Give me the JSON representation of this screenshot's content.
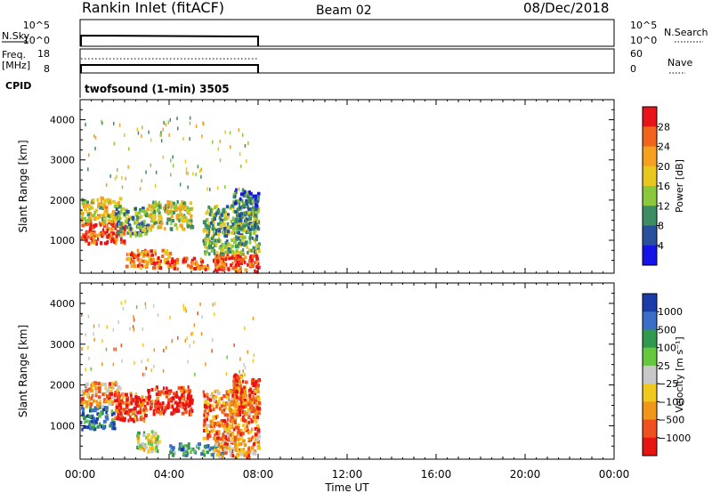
{
  "header": {
    "title": "Rankin Inlet (fitACF)",
    "beam": "Beam 02",
    "date": "08/Dec/2018"
  },
  "nsky_panel": {
    "label": "N.Sky",
    "right_label": "N.Search",
    "ticks_left": [
      "10^5",
      "10^0"
    ],
    "ticks_right": [
      "10^5",
      "10^0"
    ]
  },
  "freq_panel": {
    "label_line1": "Freq.",
    "label_line2": "[MHz]",
    "ticks_left": [
      "18",
      "8"
    ],
    "ticks_right": [
      "60",
      "0"
    ],
    "right_label": "Nave"
  },
  "cpid_panel": {
    "label": "CPID",
    "value": "twofsound (1-min) 3505"
  },
  "chart_data": [
    {
      "type": "heatmap",
      "title": "",
      "xlabel": "Time UT",
      "ylabel": "Slant Range [km]",
      "x_ticks": [
        "00:00",
        "04:00",
        "08:00",
        "12:00",
        "16:00",
        "20:00",
        "00:00"
      ],
      "xlim": [
        0,
        24
      ],
      "ylim": [
        180,
        4500
      ],
      "y_ticks": [
        1000,
        2000,
        3000,
        4000
      ],
      "colorbar": {
        "label": "Power [dB]",
        "ticks": [
          "28",
          "24",
          "20",
          "16",
          "12",
          "8",
          "4"
        ],
        "colors": [
          "#e8141a",
          "#f0641e",
          "#f5a01e",
          "#e8c81e",
          "#8cc83c",
          "#3c8c64",
          "#28509b",
          "#1414e6"
        ]
      },
      "data_coverage_hours": [
        0,
        8
      ],
      "clusters": [
        {
          "t0": 0.0,
          "t1": 2.0,
          "r0": 950,
          "r1": 1500,
          "level": 0.85
        },
        {
          "t0": 0.0,
          "t1": 1.8,
          "r0": 1500,
          "r1": 2100,
          "level": 0.55
        },
        {
          "t0": 1.5,
          "t1": 3.0,
          "r0": 1150,
          "r1": 1850,
          "level": 0.35
        },
        {
          "t0": 2.0,
          "t1": 4.0,
          "r0": 350,
          "r1": 800,
          "level": 0.75
        },
        {
          "t0": 3.0,
          "t1": 5.0,
          "r0": 1300,
          "r1": 2000,
          "level": 0.5
        },
        {
          "t0": 4.0,
          "t1": 6.5,
          "r0": 300,
          "r1": 600,
          "level": 0.8
        },
        {
          "t0": 6.0,
          "t1": 8.0,
          "r0": 250,
          "r1": 700,
          "level": 0.9
        },
        {
          "t0": 5.5,
          "t1": 8.0,
          "r0": 700,
          "r1": 1900,
          "level": 0.4
        },
        {
          "t0": 6.8,
          "t1": 8.0,
          "r0": 1300,
          "r1": 2300,
          "level": 0.3
        },
        {
          "t0": 0.0,
          "t1": 8.0,
          "r0": 2300,
          "r1": 4100,
          "level": 0.5
        }
      ]
    },
    {
      "type": "heatmap",
      "title": "",
      "xlabel": "Time UT",
      "ylabel": "Slant Range [km]",
      "x_ticks": [
        "00:00",
        "04:00",
        "08:00",
        "12:00",
        "16:00",
        "20:00",
        "00:00"
      ],
      "xlim": [
        0,
        24
      ],
      "ylim": [
        180,
        4500
      ],
      "y_ticks": [
        1000,
        2000,
        3000,
        4000
      ],
      "colorbar": {
        "label": "Velocity [m s⁻¹]",
        "ticks": [
          "1000",
          "500",
          "100",
          "25",
          "−25",
          "−100",
          "−500",
          "−1000"
        ],
        "colors": [
          "#1a3ca8",
          "#3a6ec8",
          "#2f9a4e",
          "#66c83c",
          "#c8c8c8",
          "#f0c81e",
          "#f09618",
          "#f0501e",
          "#e81414"
        ]
      },
      "data_coverage_hours": [
        0,
        8
      ],
      "clusters": [
        {
          "t0": 0.0,
          "t1": 1.5,
          "r0": 950,
          "r1": 1500,
          "level": 0.85
        },
        {
          "t0": 0.0,
          "t1": 1.8,
          "r0": 1500,
          "r1": 2100,
          "level": 0.3
        },
        {
          "t0": 1.5,
          "t1": 3.0,
          "r0": 1150,
          "r1": 1850,
          "level": 0.15
        },
        {
          "t0": 2.5,
          "t1": 3.5,
          "r0": 400,
          "r1": 900,
          "level": 0.5
        },
        {
          "t0": 3.0,
          "t1": 5.0,
          "r0": 1300,
          "r1": 2000,
          "level": 0.05
        },
        {
          "t0": 4.0,
          "t1": 6.5,
          "r0": 300,
          "r1": 600,
          "level": 0.7
        },
        {
          "t0": 6.0,
          "t1": 8.0,
          "r0": 250,
          "r1": 700,
          "level": 0.3
        },
        {
          "t0": 5.5,
          "t1": 8.0,
          "r0": 700,
          "r1": 1900,
          "level": 0.25
        },
        {
          "t0": 6.8,
          "t1": 8.0,
          "r0": 1300,
          "r1": 2300,
          "level": 0.2
        },
        {
          "t0": 0.0,
          "t1": 8.0,
          "r0": 2300,
          "r1": 4100,
          "level": 0.35
        }
      ]
    }
  ]
}
